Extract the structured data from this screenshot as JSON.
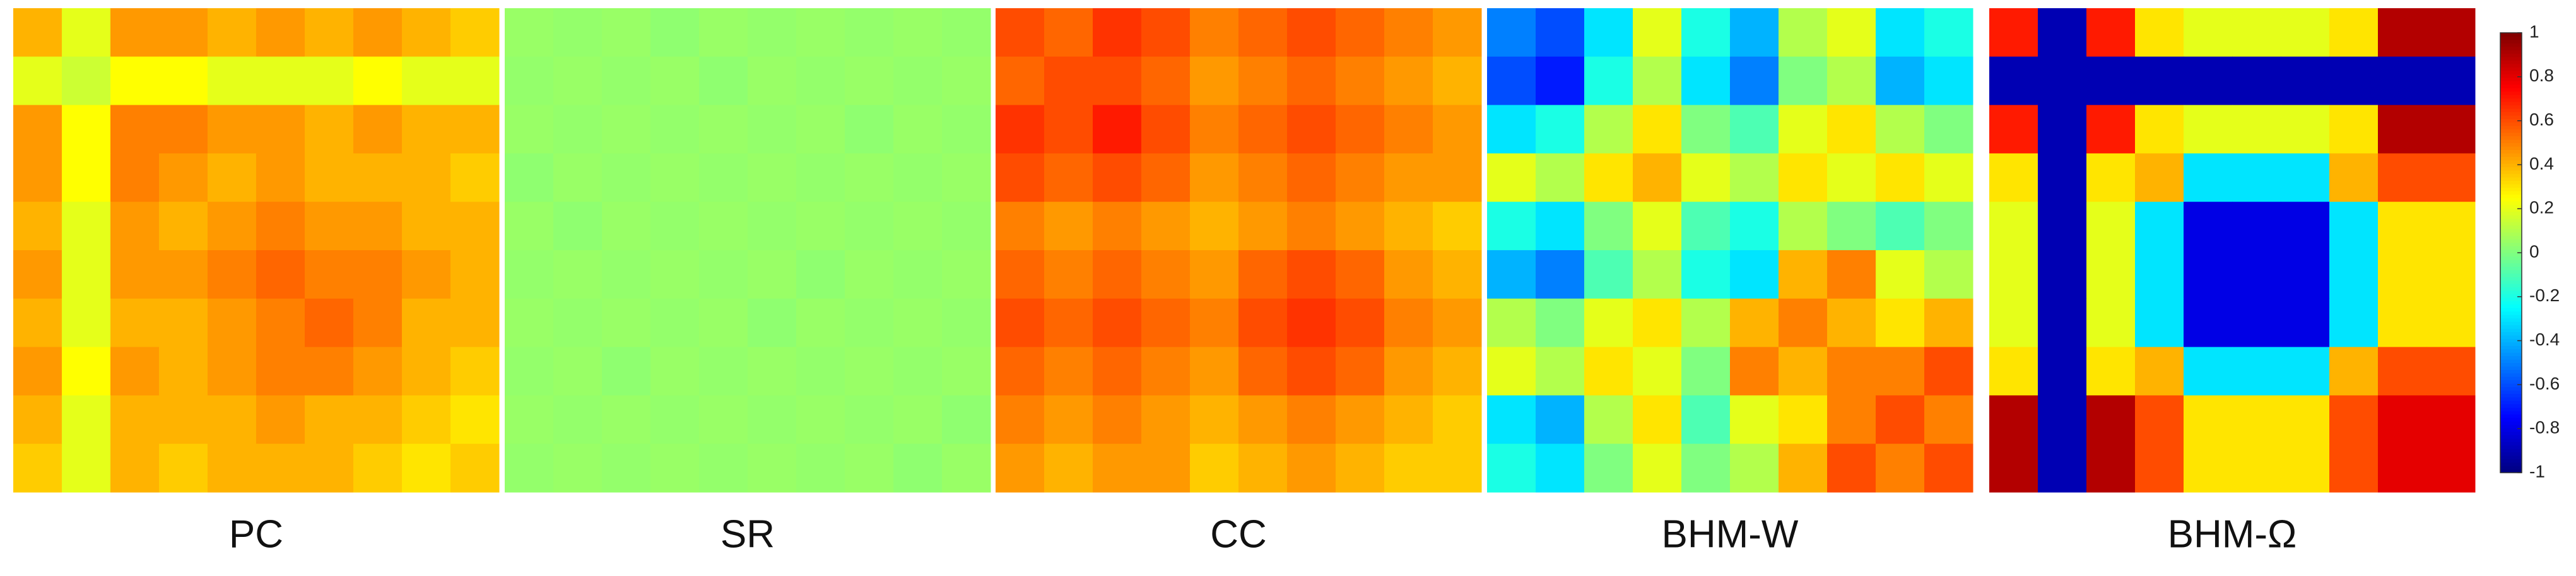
{
  "chart_data": [
    {
      "type": "heatmap",
      "title": "PC",
      "values": [
        [
          0.4,
          0.2,
          0.45,
          0.45,
          0.4,
          0.45,
          0.4,
          0.45,
          0.4,
          0.35
        ],
        [
          0.2,
          0.15,
          0.25,
          0.25,
          0.2,
          0.2,
          0.2,
          0.25,
          0.2,
          0.2
        ],
        [
          0.45,
          0.25,
          0.5,
          0.5,
          0.45,
          0.45,
          0.4,
          0.45,
          0.4,
          0.4
        ],
        [
          0.45,
          0.25,
          0.5,
          0.45,
          0.4,
          0.45,
          0.4,
          0.4,
          0.4,
          0.35
        ],
        [
          0.4,
          0.2,
          0.45,
          0.4,
          0.45,
          0.5,
          0.45,
          0.45,
          0.4,
          0.4
        ],
        [
          0.45,
          0.2,
          0.45,
          0.45,
          0.5,
          0.55,
          0.5,
          0.5,
          0.45,
          0.4
        ],
        [
          0.4,
          0.2,
          0.4,
          0.4,
          0.45,
          0.5,
          0.55,
          0.5,
          0.4,
          0.4
        ],
        [
          0.45,
          0.25,
          0.45,
          0.4,
          0.45,
          0.5,
          0.5,
          0.45,
          0.4,
          0.35
        ],
        [
          0.4,
          0.2,
          0.4,
          0.4,
          0.4,
          0.45,
          0.4,
          0.4,
          0.35,
          0.3
        ],
        [
          0.35,
          0.2,
          0.4,
          0.35,
          0.4,
          0.4,
          0.4,
          0.35,
          0.3,
          0.35
        ]
      ]
    },
    {
      "type": "heatmap",
      "title": "SR",
      "values": [
        [
          0.05,
          0.04,
          0.05,
          0.03,
          0.05,
          0.04,
          0.05,
          0.04,
          0.05,
          0.04
        ],
        [
          0.04,
          0.05,
          0.04,
          0.05,
          0.03,
          0.05,
          0.04,
          0.05,
          0.04,
          0.05
        ],
        [
          0.05,
          0.04,
          0.05,
          0.04,
          0.05,
          0.04,
          0.05,
          0.03,
          0.05,
          0.04
        ],
        [
          0.03,
          0.05,
          0.04,
          0.05,
          0.04,
          0.05,
          0.04,
          0.05,
          0.04,
          0.05
        ],
        [
          0.05,
          0.03,
          0.05,
          0.04,
          0.05,
          0.04,
          0.05,
          0.04,
          0.05,
          0.04
        ],
        [
          0.04,
          0.05,
          0.04,
          0.05,
          0.04,
          0.05,
          0.03,
          0.05,
          0.04,
          0.05
        ],
        [
          0.05,
          0.04,
          0.05,
          0.04,
          0.05,
          0.03,
          0.05,
          0.04,
          0.05,
          0.04
        ],
        [
          0.04,
          0.05,
          0.03,
          0.05,
          0.04,
          0.05,
          0.04,
          0.05,
          0.04,
          0.05
        ],
        [
          0.05,
          0.04,
          0.05,
          0.04,
          0.05,
          0.04,
          0.05,
          0.04,
          0.05,
          0.03
        ],
        [
          0.04,
          0.05,
          0.04,
          0.05,
          0.04,
          0.05,
          0.04,
          0.05,
          0.03,
          0.05
        ]
      ]
    },
    {
      "type": "heatmap",
      "title": "CC",
      "values": [
        [
          0.6,
          0.55,
          0.65,
          0.6,
          0.5,
          0.55,
          0.6,
          0.55,
          0.5,
          0.45
        ],
        [
          0.55,
          0.6,
          0.6,
          0.55,
          0.45,
          0.5,
          0.55,
          0.5,
          0.45,
          0.4
        ],
        [
          0.65,
          0.6,
          0.7,
          0.6,
          0.5,
          0.55,
          0.6,
          0.55,
          0.5,
          0.45
        ],
        [
          0.6,
          0.55,
          0.6,
          0.55,
          0.45,
          0.5,
          0.55,
          0.5,
          0.45,
          0.45
        ],
        [
          0.5,
          0.45,
          0.5,
          0.45,
          0.4,
          0.45,
          0.5,
          0.45,
          0.4,
          0.35
        ],
        [
          0.55,
          0.5,
          0.55,
          0.5,
          0.45,
          0.55,
          0.6,
          0.55,
          0.45,
          0.4
        ],
        [
          0.6,
          0.55,
          0.6,
          0.55,
          0.5,
          0.6,
          0.65,
          0.6,
          0.5,
          0.45
        ],
        [
          0.55,
          0.5,
          0.55,
          0.5,
          0.45,
          0.55,
          0.6,
          0.55,
          0.45,
          0.4
        ],
        [
          0.5,
          0.45,
          0.5,
          0.45,
          0.4,
          0.45,
          0.5,
          0.45,
          0.4,
          0.35
        ],
        [
          0.45,
          0.4,
          0.45,
          0.45,
          0.35,
          0.4,
          0.45,
          0.4,
          0.35,
          0.35
        ]
      ]
    },
    {
      "type": "heatmap",
      "title": "BHM-W",
      "values": [
        [
          -0.5,
          -0.6,
          -0.3,
          0.2,
          -0.2,
          -0.4,
          0.1,
          0.2,
          -0.3,
          -0.2
        ],
        [
          -0.6,
          -0.7,
          -0.2,
          0.1,
          -0.3,
          -0.5,
          0.0,
          0.1,
          -0.4,
          -0.3
        ],
        [
          -0.3,
          -0.2,
          0.1,
          0.3,
          0.0,
          -0.1,
          0.2,
          0.3,
          0.1,
          0.0
        ],
        [
          0.2,
          0.1,
          0.3,
          0.4,
          0.2,
          0.1,
          0.3,
          0.2,
          0.3,
          0.2
        ],
        [
          -0.2,
          -0.3,
          0.0,
          0.2,
          -0.1,
          -0.2,
          0.1,
          0.0,
          -0.1,
          0.0
        ],
        [
          -0.4,
          -0.5,
          -0.1,
          0.1,
          -0.2,
          -0.3,
          0.4,
          0.5,
          0.2,
          0.1
        ],
        [
          0.1,
          0.0,
          0.2,
          0.3,
          0.1,
          0.4,
          0.5,
          0.4,
          0.3,
          0.4
        ],
        [
          0.2,
          0.1,
          0.3,
          0.2,
          0.0,
          0.5,
          0.4,
          0.5,
          0.5,
          0.6
        ],
        [
          -0.3,
          -0.4,
          0.1,
          0.3,
          -0.1,
          0.2,
          0.3,
          0.5,
          0.6,
          0.5
        ],
        [
          -0.2,
          -0.3,
          0.0,
          0.2,
          0.0,
          0.1,
          0.4,
          0.6,
          0.5,
          0.6
        ]
      ]
    },
    {
      "type": "heatmap",
      "title": "BHM-Ω",
      "values": [
        [
          0.7,
          -0.9,
          0.7,
          0.3,
          0.2,
          0.2,
          0.2,
          0.3,
          0.9,
          0.9
        ],
        [
          -0.9,
          -0.9,
          -0.9,
          -0.9,
          -0.9,
          -0.9,
          -0.9,
          -0.9,
          -0.9,
          -0.9
        ],
        [
          0.7,
          -0.9,
          0.7,
          0.3,
          0.2,
          0.2,
          0.2,
          0.3,
          0.9,
          0.9
        ],
        [
          0.3,
          -0.9,
          0.3,
          0.4,
          -0.3,
          -0.3,
          -0.3,
          0.4,
          0.6,
          0.6
        ],
        [
          0.2,
          -0.9,
          0.2,
          -0.3,
          -0.8,
          -0.8,
          -0.8,
          -0.3,
          0.3,
          0.3
        ],
        [
          0.2,
          -0.9,
          0.2,
          -0.3,
          -0.8,
          -0.8,
          -0.8,
          -0.3,
          0.3,
          0.3
        ],
        [
          0.2,
          -0.9,
          0.2,
          -0.3,
          -0.8,
          -0.8,
          -0.8,
          -0.3,
          0.3,
          0.3
        ],
        [
          0.3,
          -0.9,
          0.3,
          0.4,
          -0.3,
          -0.3,
          -0.3,
          0.4,
          0.6,
          0.6
        ],
        [
          0.9,
          -0.9,
          0.9,
          0.6,
          0.3,
          0.3,
          0.3,
          0.6,
          0.8,
          0.8
        ],
        [
          0.9,
          -0.9,
          0.9,
          0.6,
          0.3,
          0.3,
          0.3,
          0.6,
          0.8,
          0.8
        ]
      ]
    }
  ],
  "colorbar": {
    "colormap": "jet",
    "range": [
      -1,
      1
    ],
    "ticks": [
      1,
      0.8,
      0.6,
      0.4,
      0.2,
      0,
      -0.2,
      -0.4,
      -0.6,
      -0.8,
      -1
    ]
  }
}
